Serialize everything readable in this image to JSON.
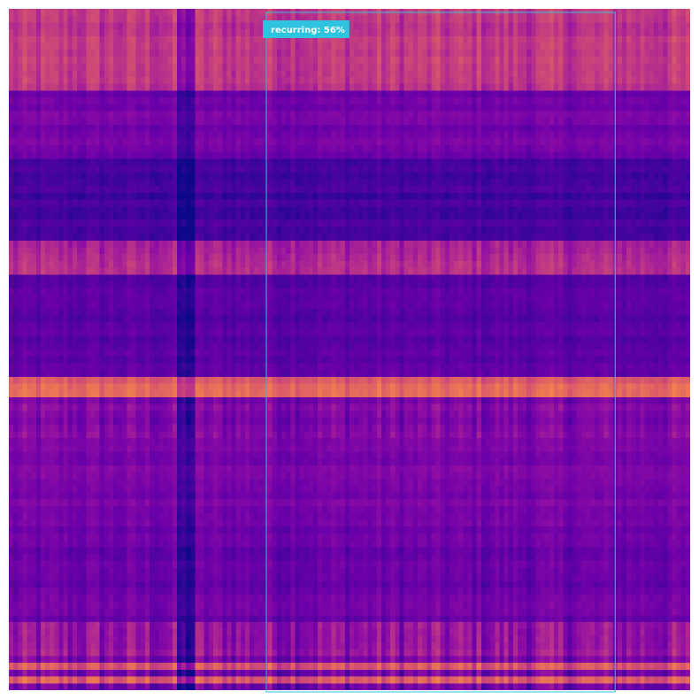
{
  "chart_data": {
    "type": "heatmap",
    "colormap": "plasma",
    "title": "",
    "xlabel": "",
    "ylabel": "",
    "axes_visible": false,
    "grid": false,
    "row_band_levels": [
      {
        "rows": [
          0,
          11
        ],
        "level": 0.55,
        "stripe_contrast": 0.2
      },
      {
        "rows": [
          12,
          21
        ],
        "level": 0.28,
        "stripe_contrast": 0.08
      },
      {
        "rows": [
          22,
          33
        ],
        "level": 0.14,
        "stripe_contrast": 0.06
      },
      {
        "rows": [
          34,
          38
        ],
        "level": 0.48,
        "stripe_contrast": 0.18
      },
      {
        "rows": [
          39,
          53
        ],
        "level": 0.2,
        "stripe_contrast": 0.08
      },
      {
        "rows": [
          54,
          56
        ],
        "level": 0.74,
        "stripe_contrast": 0.15
      },
      {
        "rows": [
          57,
          62
        ],
        "level": 0.32,
        "stripe_contrast": 0.2
      },
      {
        "rows": [
          63,
          73
        ],
        "level": 0.3,
        "stripe_contrast": 0.1
      },
      {
        "rows": [
          74,
          89
        ],
        "level": 0.26,
        "stripe_contrast": 0.12
      },
      {
        "rows": [
          90,
          99
        ],
        "level": 0.42,
        "stripe_contrast": 0.3
      }
    ],
    "n_rows": 100,
    "n_cols": 150,
    "low_column_dip": {
      "cols": [
        37,
        40
      ],
      "delta": -0.1
    },
    "annotations": [
      {
        "label": "recurring: 56%",
        "color": "#2ec4e0",
        "x_start_frac": 0.378,
        "x_end_frac": 0.89
      }
    ]
  }
}
